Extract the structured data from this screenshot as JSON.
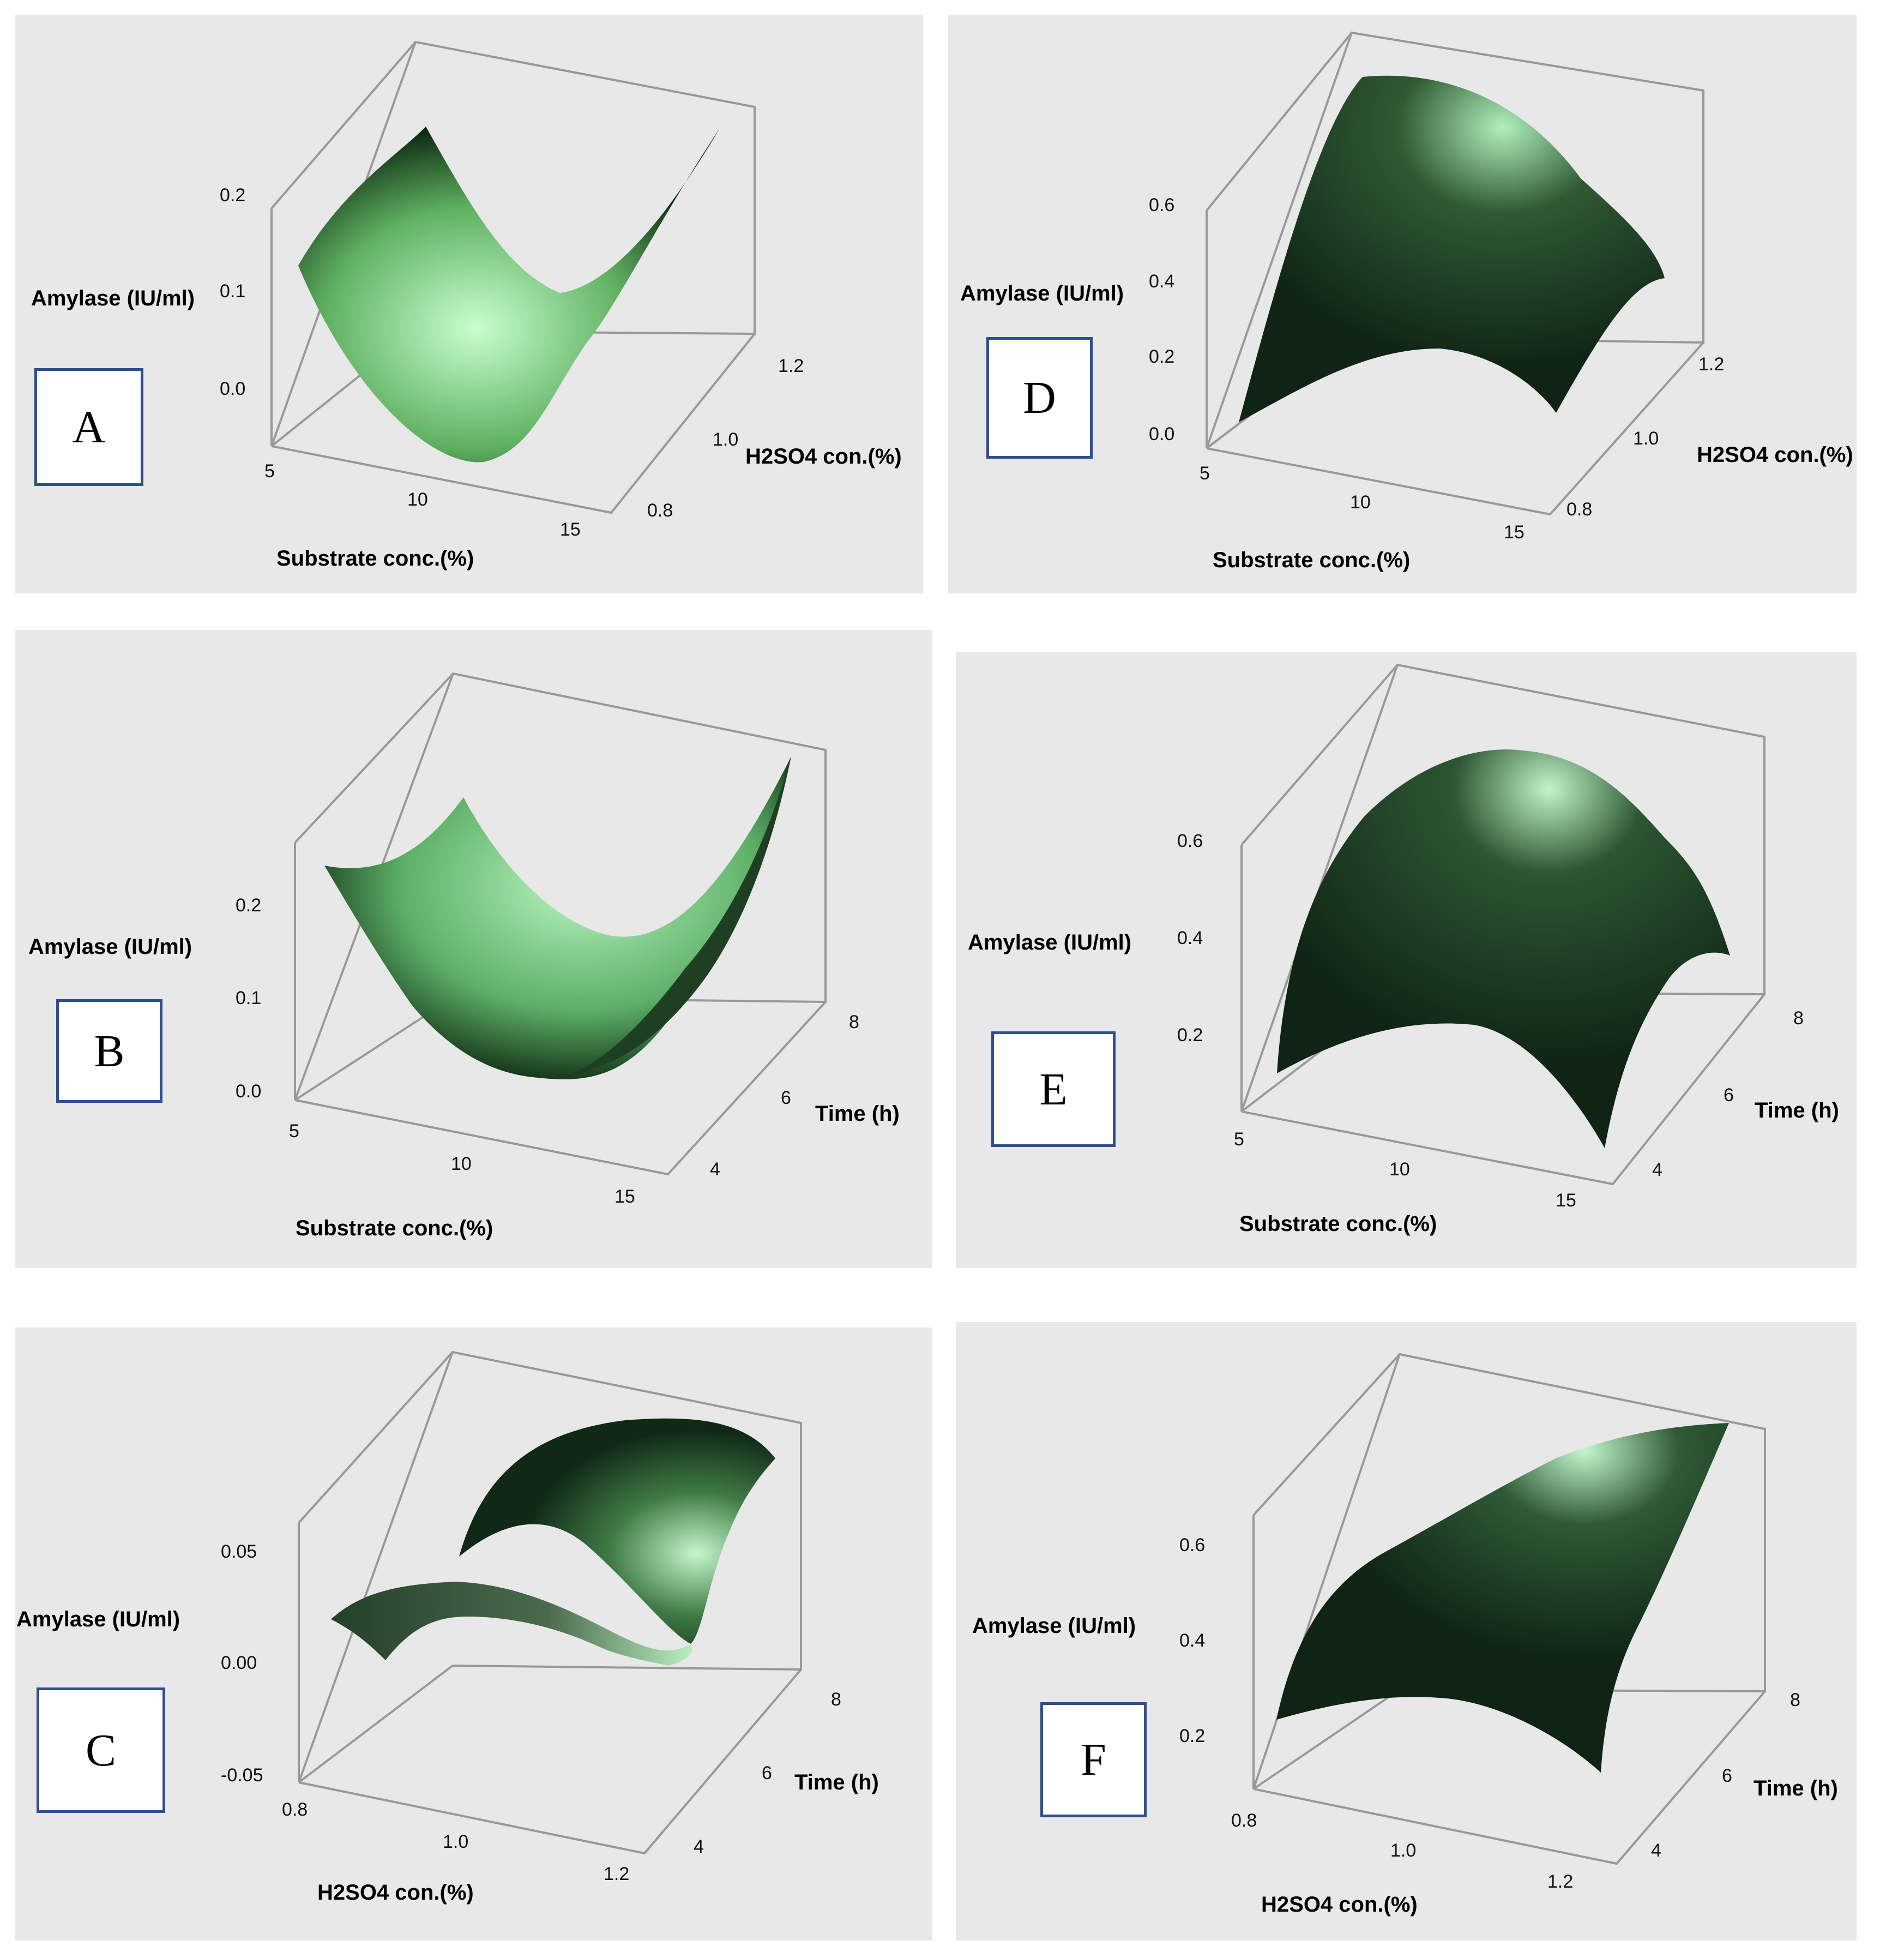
{
  "chart_data": [
    {
      "type": "surface",
      "panel_label": "A",
      "xlabel": "Substrate conc.(%)",
      "ylabel": "H2SO4 con.(%)",
      "zlabel": "Amylase (IU/ml)",
      "x_ticks": [
        "5",
        "10",
        "15"
      ],
      "y_ticks": [
        "0.8",
        "1.0",
        "1.2"
      ],
      "z_ticks": [
        "0.0",
        "0.1",
        "0.2"
      ],
      "xlim": [
        5,
        15
      ],
      "ylim": [
        0.8,
        1.2
      ],
      "zlim": [
        -0.03,
        0.28
      ],
      "surface_z": [
        [
          0.13,
          0.18,
          0.22
        ],
        [
          -0.02,
          0.03,
          0.07
        ],
        [
          0.02,
          0.12,
          0.27
        ]
      ],
      "colors": {
        "light": "#c8ffd0",
        "mid": "#5fb060",
        "dark": "#0d2a12"
      }
    },
    {
      "type": "surface",
      "panel_label": "B",
      "xlabel": "Substrate conc.(%)",
      "ylabel": "Time (h)",
      "zlabel": "Amylase (IU/ml)",
      "x_ticks": [
        "5",
        "10",
        "15"
      ],
      "y_ticks": [
        "4",
        "6",
        "8"
      ],
      "z_ticks": [
        "0.0",
        "0.1",
        "0.2"
      ],
      "xlim": [
        5,
        15
      ],
      "ylim": [
        4,
        8
      ],
      "zlim": [
        -0.02,
        0.33
      ],
      "surface_z": [
        [
          0.24,
          0.28,
          0.26
        ],
        [
          0.0,
          0.05,
          0.11
        ],
        [
          0.06,
          0.14,
          0.33
        ]
      ],
      "colors": {
        "light": "#b8f5c0",
        "mid": "#5cae66",
        "dark": "#173a1c"
      }
    },
    {
      "type": "surface",
      "panel_label": "C",
      "xlabel": "H2SO4 con.(%)",
      "ylabel": "Time (h)",
      "zlabel": "Amylase (IU/ml)",
      "x_ticks": [
        "0.8",
        "1.0",
        "1.2"
      ],
      "y_ticks": [
        "4",
        "6",
        "8"
      ],
      "z_ticks": [
        "-0.05",
        "0.00",
        "0.05"
      ],
      "xlim": [
        0.8,
        1.2
      ],
      "ylim": [
        4,
        8
      ],
      "zlim": [
        -0.06,
        0.1
      ],
      "surface_z": [
        [
          0.02,
          0.03,
          0.04
        ],
        [
          0.04,
          0.06,
          0.08
        ],
        [
          -0.03,
          0.01,
          0.07
        ]
      ],
      "colors": {
        "light": "#c5f7cc",
        "mid": "#3e7a45",
        "dark": "#102816"
      }
    },
    {
      "type": "surface",
      "panel_label": "D",
      "xlabel": "Substrate conc.(%)",
      "ylabel": "H2SO4 con.(%)",
      "zlabel": "Amylase (IU/ml)",
      "x_ticks": [
        "5",
        "10",
        "15"
      ],
      "y_ticks": [
        "0.8",
        "1.0",
        "1.2"
      ],
      "z_ticks": [
        "0.0",
        "0.2",
        "0.4",
        "0.6"
      ],
      "xlim": [
        5,
        15
      ],
      "ylim": [
        0.8,
        1.2
      ],
      "zlim": [
        0.0,
        0.72
      ],
      "surface_z": [
        [
          0.05,
          0.45,
          0.65
        ],
        [
          0.5,
          0.65,
          0.7
        ],
        [
          0.1,
          0.3,
          0.42
        ]
      ],
      "colors": {
        "light": "#b0f0bc",
        "mid": "#2f5a34",
        "dark": "#0f2414"
      }
    },
    {
      "type": "surface",
      "panel_label": "E",
      "xlabel": "Substrate conc.(%)",
      "ylabel": "Time (h)",
      "zlabel": "Amylase (IU/ml)",
      "x_ticks": [
        "5",
        "10",
        "15"
      ],
      "y_ticks": [
        "4",
        "6",
        "8"
      ],
      "z_ticks": [
        "0.2",
        "0.4",
        "0.6"
      ],
      "xlim": [
        5,
        15
      ],
      "ylim": [
        4,
        8
      ],
      "zlim": [
        0.12,
        0.72
      ],
      "surface_z": [
        [
          0.2,
          0.45,
          0.55
        ],
        [
          0.55,
          0.65,
          0.7
        ],
        [
          0.15,
          0.3,
          0.45
        ]
      ],
      "colors": {
        "light": "#c0f5ca",
        "mid": "#2d5632",
        "dark": "#0f2414"
      }
    },
    {
      "type": "surface",
      "panel_label": "F",
      "xlabel": "H2SO4 con.(%)",
      "ylabel": "Time (h)",
      "zlabel": "Amylase (IU/ml)",
      "x_ticks": [
        "0.8",
        "1.0",
        "1.2"
      ],
      "y_ticks": [
        "4",
        "6",
        "8"
      ],
      "z_ticks": [
        "0.2",
        "0.4",
        "0.6"
      ],
      "xlim": [
        0.8,
        1.2
      ],
      "ylim": [
        4,
        8
      ],
      "zlim": [
        0.12,
        0.72
      ],
      "surface_z": [
        [
          0.25,
          0.42,
          0.55
        ],
        [
          0.35,
          0.55,
          0.66
        ],
        [
          0.18,
          0.45,
          0.72
        ]
      ],
      "colors": {
        "light": "#c4f7cf",
        "mid": "#2f5a35",
        "dark": "#0f2414"
      }
    }
  ]
}
